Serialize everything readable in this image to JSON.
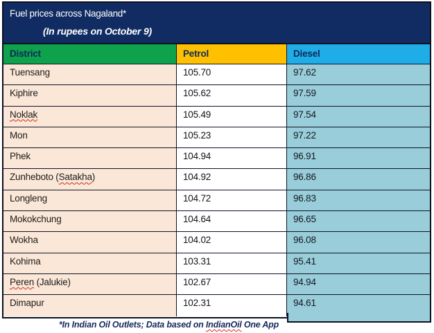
{
  "title": "Fuel prices across Nagaland*",
  "subtitle": "(In rupees on October 9)",
  "columns": [
    "District",
    "Petrol",
    "Diesel"
  ],
  "rows": [
    {
      "pre": "Tuensang",
      "wavy": "",
      "post": "",
      "petrol": "105.70",
      "diesel": "97.62"
    },
    {
      "pre": "Kiphire",
      "wavy": "",
      "post": "",
      "petrol": "105.62",
      "diesel": "97.59"
    },
    {
      "pre": "",
      "wavy": "Noklak",
      "post": "",
      "petrol": "105.49",
      "diesel": "97.54"
    },
    {
      "pre": "Mon",
      "wavy": "",
      "post": "",
      "petrol": "105.23",
      "diesel": "97.22"
    },
    {
      "pre": "Phek",
      "wavy": "",
      "post": "",
      "petrol": "104.94",
      "diesel": "96.91"
    },
    {
      "pre": "Zunheboto (",
      "wavy": "Satakha",
      "post": ")",
      "petrol": "104.92",
      "diesel": "96.86"
    },
    {
      "pre": "Longleng",
      "wavy": "",
      "post": "",
      "petrol": "104.72",
      "diesel": "96.83"
    },
    {
      "pre": "Mokokchung",
      "wavy": "",
      "post": "",
      "petrol": "104.64",
      "diesel": "96.65"
    },
    {
      "pre": "Wokha",
      "wavy": "",
      "post": "",
      "petrol": "104.02",
      "diesel": "96.08"
    },
    {
      "pre": "Kohima",
      "wavy": "",
      "post": "",
      "petrol": "103.31",
      "diesel": "95.41"
    },
    {
      "pre": "",
      "wavy": "Peren",
      "post": " (Jalukie)",
      "petrol": "102.67",
      "diesel": "94.94"
    },
    {
      "pre": "Dimapur",
      "wavy": "",
      "post": "",
      "petrol": "102.31",
      "diesel": "94.61"
    }
  ],
  "footnote": {
    "pre": "*In Indian Oil Outlets; Data based on ",
    "wavy": "IndianOil",
    "post": " One App"
  },
  "colors": {
    "title_bg": "#112c62",
    "district_header_bg": "#0fa24c",
    "petrol_header_bg": "#ffc000",
    "diesel_header_bg": "#1fade8",
    "district_cell_bg": "#fbe7d7",
    "petrol_cell_bg": "#ffffff",
    "diesel_cell_bg": "#98cdd9",
    "border": "#0d1326",
    "squiggle": "#d42a1e"
  },
  "chart_data": {
    "type": "table",
    "title": "Fuel prices across Nagaland*",
    "subtitle": "(In rupees on October 9)",
    "columns": [
      "District",
      "Petrol",
      "Diesel"
    ],
    "rows": [
      [
        "Tuensang",
        105.7,
        97.62
      ],
      [
        "Kiphire",
        105.62,
        97.59
      ],
      [
        "Noklak",
        105.49,
        97.54
      ],
      [
        "Mon",
        105.23,
        97.22
      ],
      [
        "Phek",
        104.94,
        96.91
      ],
      [
        "Zunheboto (Satakha)",
        104.92,
        96.86
      ],
      [
        "Longleng",
        104.72,
        96.83
      ],
      [
        "Mokokchung",
        104.64,
        96.65
      ],
      [
        "Wokha",
        104.02,
        96.08
      ],
      [
        "Kohima",
        103.31,
        95.41
      ],
      [
        "Peren (Jalukie)",
        102.67,
        94.94
      ],
      [
        "Dimapur",
        102.31,
        94.61
      ]
    ],
    "footnote": "*In Indian Oil Outlets; Data based on IndianOil One App"
  }
}
